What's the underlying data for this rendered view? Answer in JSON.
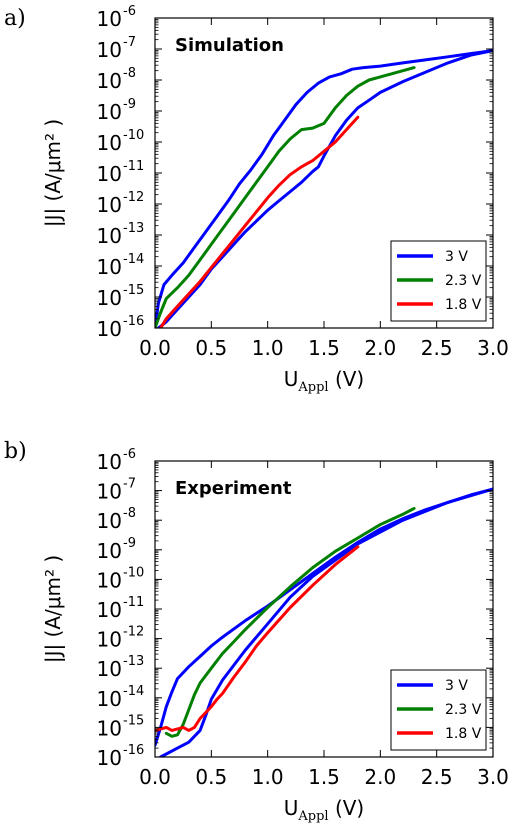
{
  "chart_data": [
    {
      "type": "line",
      "panel_label": "a)",
      "annotation": "Simulation",
      "xlabel": "U",
      "xlabel_sub": "Appl",
      "xlabel_unit": " (V)",
      "ylabel": "|J| (A/μm² )",
      "xlim": [
        0,
        3
      ],
      "ylim_exp": [
        -16,
        -6
      ],
      "yscale": "log",
      "xticks": [
        "0.0",
        "0.5",
        "1.0",
        "1.5",
        "2.0",
        "2.5",
        "3.0"
      ],
      "yticks": [
        "10-16",
        "10-15",
        "10-14",
        "10-13",
        "10-12",
        "10-11",
        "10-10",
        "10-9",
        "10-8",
        "10-7",
        "10-6"
      ],
      "legend_position": "lower right",
      "legend": [
        "3 V",
        "2.3 V",
        "1.8 V"
      ],
      "series": [
        {
          "name": "3 V",
          "color": "#0000ff",
          "x": [
            0.0,
            0.03,
            0.08,
            0.15,
            0.25,
            0.35,
            0.45,
            0.55,
            0.65,
            0.75,
            0.85,
            0.95,
            1.05,
            1.15,
            1.25,
            1.35,
            1.45,
            1.55,
            1.65,
            1.75,
            1.85,
            2.0,
            2.2,
            2.4,
            2.6,
            2.8,
            3.0
          ],
          "y_log10": [
            -16.0,
            -15.2,
            -14.6,
            -14.3,
            -13.9,
            -13.4,
            -12.9,
            -12.4,
            -11.9,
            -11.35,
            -10.9,
            -10.4,
            -9.8,
            -9.3,
            -8.8,
            -8.4,
            -8.1,
            -7.9,
            -7.8,
            -7.65,
            -7.6,
            -7.55,
            -7.45,
            -7.35,
            -7.25,
            -7.15,
            -7.05
          ]
        },
        {
          "name": "3 V return",
          "color": "#0000ff",
          "x": [
            3.0,
            2.8,
            2.6,
            2.4,
            2.2,
            2.0,
            1.9,
            1.8,
            1.7,
            1.6,
            1.5,
            1.45,
            1.4,
            1.3,
            1.2,
            1.1,
            1.0,
            0.9,
            0.8,
            0.7,
            0.6,
            0.5,
            0.4,
            0.3,
            0.2,
            0.1,
            0.03
          ],
          "y_log10": [
            -7.05,
            -7.2,
            -7.45,
            -7.75,
            -8.05,
            -8.4,
            -8.65,
            -8.9,
            -9.3,
            -9.8,
            -10.45,
            -10.8,
            -10.95,
            -11.3,
            -11.6,
            -11.9,
            -12.2,
            -12.55,
            -12.9,
            -13.3,
            -13.7,
            -14.1,
            -14.6,
            -15.0,
            -15.4,
            -15.8,
            -16.0
          ]
        },
        {
          "name": "2.3 V",
          "color": "#008000",
          "x": [
            0.0,
            0.05,
            0.1,
            0.2,
            0.3,
            0.4,
            0.5,
            0.6,
            0.7,
            0.8,
            0.9,
            1.0,
            1.1,
            1.2,
            1.3,
            1.4,
            1.5,
            1.6,
            1.7,
            1.8,
            1.9,
            2.0,
            2.1,
            2.2,
            2.3
          ],
          "y_log10": [
            -16.0,
            -15.5,
            -15.05,
            -14.7,
            -14.3,
            -13.8,
            -13.3,
            -12.8,
            -12.3,
            -11.8,
            -11.3,
            -10.8,
            -10.3,
            -9.9,
            -9.6,
            -9.55,
            -9.4,
            -8.9,
            -8.5,
            -8.2,
            -8.0,
            -7.9,
            -7.8,
            -7.7,
            -7.6
          ]
        },
        {
          "name": "1.8 V",
          "color": "#ff0000",
          "x": [
            0.05,
            0.1,
            0.2,
            0.3,
            0.4,
            0.5,
            0.6,
            0.7,
            0.8,
            0.9,
            1.0,
            1.1,
            1.2,
            1.3,
            1.4,
            1.5,
            1.6,
            1.7,
            1.8
          ],
          "y_log10": [
            -16.0,
            -15.7,
            -15.3,
            -14.9,
            -14.5,
            -14.05,
            -13.6,
            -13.15,
            -12.7,
            -12.25,
            -11.8,
            -11.4,
            -11.05,
            -10.8,
            -10.6,
            -10.3,
            -10.0,
            -9.6,
            -9.2
          ]
        }
      ]
    },
    {
      "type": "line",
      "panel_label": "b)",
      "annotation": "Experiment",
      "xlabel": "U",
      "xlabel_sub": "Appl",
      "xlabel_unit": " (V)",
      "ylabel": "|J| (A/μm² )",
      "xlim": [
        0,
        3
      ],
      "ylim_exp": [
        -16,
        -6
      ],
      "yscale": "log",
      "xticks": [
        "0.0",
        "0.5",
        "1.0",
        "1.5",
        "2.0",
        "2.5",
        "3.0"
      ],
      "yticks": [
        "10-16",
        "10-15",
        "10-14",
        "10-13",
        "10-12",
        "10-11",
        "10-10",
        "10-9",
        "10-8",
        "10-7",
        "10-6"
      ],
      "legend_position": "lower right",
      "legend": [
        "3 V",
        "2.3 V",
        "1.8 V"
      ],
      "series": [
        {
          "name": "3 V",
          "color": "#0000ff",
          "x": [
            0.0,
            0.05,
            0.1,
            0.15,
            0.2,
            0.3,
            0.4,
            0.5,
            0.6,
            0.8,
            1.0,
            1.2,
            1.4,
            1.6,
            1.8,
            2.0,
            2.2,
            2.4,
            2.6,
            2.8,
            3.0
          ],
          "y_log10": [
            -15.6,
            -15.0,
            -14.3,
            -13.8,
            -13.35,
            -12.95,
            -12.6,
            -12.25,
            -11.95,
            -11.4,
            -10.9,
            -10.35,
            -9.8,
            -9.25,
            -8.75,
            -8.3,
            -7.95,
            -7.65,
            -7.4,
            -7.15,
            -6.95
          ]
        },
        {
          "name": "3 V return",
          "color": "#0000ff",
          "x": [
            3.0,
            2.6,
            2.2,
            1.8,
            1.4,
            1.2,
            1.0,
            0.8,
            0.6,
            0.5,
            0.45,
            0.4,
            0.3,
            0.2,
            0.1,
            0.05
          ],
          "y_log10": [
            -6.95,
            -7.4,
            -8.0,
            -8.8,
            -9.9,
            -10.6,
            -11.5,
            -12.4,
            -13.4,
            -14.05,
            -14.6,
            -15.1,
            -15.5,
            -15.7,
            -15.9,
            -16.0
          ]
        },
        {
          "name": "2.3 V",
          "color": "#008000",
          "x": [
            0.1,
            0.15,
            0.2,
            0.25,
            0.3,
            0.35,
            0.4,
            0.5,
            0.6,
            0.7,
            0.8,
            1.0,
            1.2,
            1.4,
            1.6,
            1.8,
            2.0,
            2.2,
            2.3
          ],
          "y_log10": [
            -15.2,
            -15.3,
            -15.25,
            -14.9,
            -14.4,
            -13.9,
            -13.5,
            -13.0,
            -12.5,
            -12.1,
            -11.7,
            -10.95,
            -10.25,
            -9.6,
            -9.05,
            -8.6,
            -8.15,
            -7.8,
            -7.6
          ]
        },
        {
          "name": "1.8 V",
          "color": "#ff0000",
          "x": [
            0.0,
            0.05,
            0.1,
            0.15,
            0.2,
            0.25,
            0.3,
            0.35,
            0.4,
            0.45,
            0.5,
            0.55,
            0.6,
            0.7,
            0.8,
            0.9,
            1.0,
            1.2,
            1.4,
            1.6,
            1.8
          ],
          "y_log10": [
            -15.1,
            -15.05,
            -15.0,
            -15.1,
            -15.05,
            -15.0,
            -15.1,
            -15.0,
            -14.7,
            -14.5,
            -14.3,
            -14.05,
            -13.85,
            -13.3,
            -12.8,
            -12.25,
            -11.8,
            -10.95,
            -10.2,
            -9.5,
            -8.9
          ]
        }
      ]
    }
  ]
}
